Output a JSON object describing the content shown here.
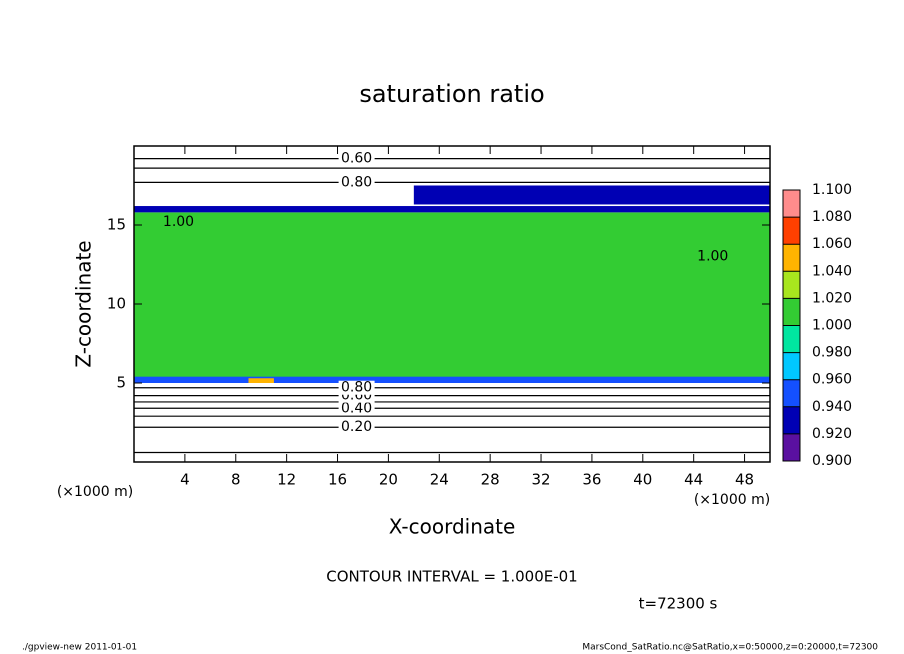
{
  "chart_data": {
    "type": "contour",
    "title": "saturation ratio",
    "xlabel": "X-coordinate",
    "ylabel": "Z-coordinate",
    "x_unit": "(×1000 m)",
    "y_unit": "(×1000 m)",
    "xlim": [
      0,
      50
    ],
    "ylim": [
      0,
      20
    ],
    "xticks": [
      4,
      8,
      12,
      16,
      20,
      24,
      28,
      32,
      36,
      40,
      44,
      48
    ],
    "yticks": [
      5,
      10,
      15
    ],
    "colorbar": {
      "ticks": [
        {
          "value": 0.9,
          "label": "0.900"
        },
        {
          "value": 0.92,
          "label": "0.920"
        },
        {
          "value": 0.94,
          "label": "0.940"
        },
        {
          "value": 0.96,
          "label": "0.960"
        },
        {
          "value": 0.98,
          "label": "0.980"
        },
        {
          "value": 1.0,
          "label": "1.000"
        },
        {
          "value": 1.02,
          "label": "1.020"
        },
        {
          "value": 1.04,
          "label": "1.040"
        },
        {
          "value": 1.06,
          "label": "1.060"
        },
        {
          "value": 1.08,
          "label": "1.080"
        },
        {
          "value": 1.1,
          "label": "1.100"
        }
      ],
      "colors": [
        "#5a10a0",
        "#0000b4",
        "#1450ff",
        "#00c8ff",
        "#00e6a0",
        "#33cc33",
        "#a8e61e",
        "#ffb400",
        "#ff4000",
        "#ff8c8c"
      ]
    },
    "fill_regions": [
      {
        "xlim": [
          0,
          50
        ],
        "zlim": [
          5,
          15.8
        ],
        "value": 1.0
      },
      {
        "xlim": [
          0,
          50
        ],
        "zlim": [
          5,
          5.4
        ],
        "value": 0.95
      },
      {
        "xlim": [
          9,
          11
        ],
        "zlim": [
          5,
          5.3
        ],
        "value": 1.05
      },
      {
        "xlim": [
          0,
          50
        ],
        "zlim": [
          15.8,
          16.2
        ],
        "value": 0.93
      },
      {
        "xlim": [
          22,
          50
        ],
        "zlim": [
          16.3,
          17.5
        ],
        "value": 0.93
      }
    ],
    "contours": [
      {
        "level": 0.1,
        "z": 0.6
      },
      {
        "level": 0.2,
        "label": "0.20",
        "z": 2.2,
        "x": 17.5
      },
      {
        "level": 0.3,
        "z": 2.9
      },
      {
        "level": 0.4,
        "label": "0.40",
        "z": 3.4,
        "x": 17.5
      },
      {
        "level": 0.5,
        "z": 3.8
      },
      {
        "level": 0.6,
        "label": "0.60",
        "z": 4.2,
        "x": 17.5
      },
      {
        "level": 0.8,
        "label": "0.80",
        "z": 4.7,
        "x": 17.5
      },
      {
        "level": 0.8,
        "label": "0.80",
        "z": 17.7,
        "x": 17.5
      },
      {
        "level": 0.7,
        "z": 18.6
      },
      {
        "level": 0.6,
        "label": "0.60",
        "z": 19.2,
        "x": 17.5
      },
      {
        "level": 1.0,
        "label": "1.00",
        "z": 15.2,
        "x": 3.5
      },
      {
        "level": 1.0,
        "label": "1.00",
        "z": 13.0,
        "x": 45.5
      }
    ],
    "contour_interval_label": "CONTOUR INTERVAL = 1.000E-01",
    "time_label": "t=72300 s"
  },
  "footer": {
    "left": "./gpview-new  2011-01-01",
    "right": "MarsCond_SatRatio.nc@SatRatio,x=0:50000,z=0:20000,t=72300"
  }
}
